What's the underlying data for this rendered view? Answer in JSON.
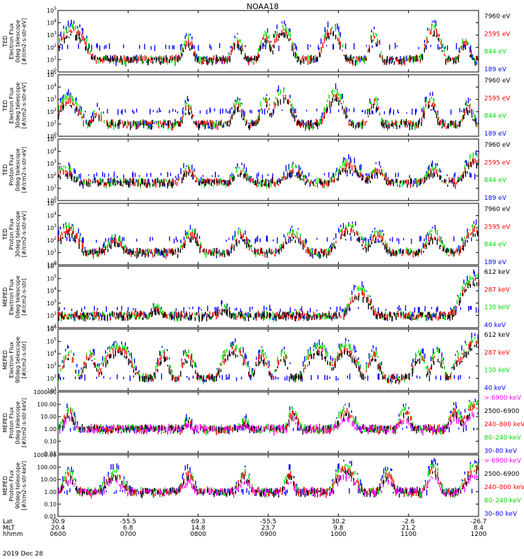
{
  "title": "NOAA18",
  "date_label": "2019 Dec 28",
  "x_axis": {
    "row_labels": [
      "Lat",
      "MLT",
      "hhmm"
    ],
    "ticks": [
      {
        "lat": "30.9",
        "mlt": "20.4",
        "hhmm": "0600"
      },
      {
        "lat": "-55.5",
        "mlt": "6.8",
        "hhmm": "0700"
      },
      {
        "lat": "69.3",
        "mlt": "14.8",
        "hhmm": "0800"
      },
      {
        "lat": "-55.5",
        "mlt": "23.7",
        "hhmm": "0900"
      },
      {
        "lat": "30.2",
        "mlt": "9.8",
        "hhmm": "1000"
      },
      {
        "lat": "-2.6",
        "mlt": "21.2",
        "hhmm": "1100"
      },
      {
        "lat": "-26.7",
        "mlt": "8.4",
        "hhmm": "1200"
      }
    ]
  },
  "chart_data": [
    {
      "type": "scatter",
      "ylabel": [
        "TED",
        "Electron Flux",
        "0deg telescope",
        "[#/cm2-s-str-eV]"
      ],
      "yscale": "log",
      "ylim": [
        1,
        100000
      ],
      "ytick_labels": [
        "10^0",
        "10^1",
        "10^2",
        "10^3",
        "10^4",
        "10^5"
      ],
      "legend": [
        {
          "label": "7960 eV",
          "color": "#000000"
        },
        {
          "label": "2595 eV",
          "color": "#ff0000"
        },
        {
          "label": "844 eV",
          "color": "#00dd00"
        },
        {
          "label": "189 eV",
          "color": "#0000ff"
        }
      ],
      "peaks": [
        [
          6.2,
          10000,
          0.12
        ],
        [
          7.85,
          1000,
          0.06
        ],
        [
          8.55,
          1000,
          0.06
        ],
        [
          8.95,
          3000,
          0.05
        ],
        [
          9.2,
          10000,
          0.08
        ],
        [
          9.9,
          10000,
          0.08
        ],
        [
          10.5,
          3000,
          0.05
        ],
        [
          11.35,
          10000,
          0.07
        ],
        [
          11.8,
          1000,
          0.05
        ]
      ],
      "baseline": 10,
      "bg": 100
    },
    {
      "type": "scatter",
      "ylabel": [
        "TED",
        "Electron Flux",
        "30deg telescope",
        "[#/cm2-s-str-eV]"
      ],
      "yscale": "log",
      "ylim": [
        1,
        100000
      ],
      "ytick_labels": [
        "10^0",
        "10^1",
        "10^2",
        "10^3",
        "10^4",
        "10^5"
      ],
      "legend": [
        {
          "label": "7960 eV",
          "color": "#000000"
        },
        {
          "label": "2595 eV",
          "color": "#ff0000"
        },
        {
          "label": "844 eV",
          "color": "#00dd00"
        },
        {
          "label": "189 eV",
          "color": "#0000ff"
        }
      ],
      "peaks": [
        [
          6.15,
          3000,
          0.1
        ],
        [
          6.55,
          300,
          0.05
        ],
        [
          7.85,
          1000,
          0.05
        ],
        [
          8.55,
          1000,
          0.06
        ],
        [
          8.95,
          3000,
          0.05
        ],
        [
          9.2,
          10000,
          0.08
        ],
        [
          9.95,
          10000,
          0.08
        ],
        [
          10.5,
          3000,
          0.05
        ],
        [
          11.3,
          3000,
          0.06
        ],
        [
          11.85,
          1000,
          0.05
        ]
      ],
      "baseline": 10,
      "bg": 100
    },
    {
      "type": "scatter",
      "ylabel": [
        "TED",
        "Proton Flux",
        "0deg telescope",
        "[#/cm2-s-str-eV]"
      ],
      "yscale": "log",
      "ylim": [
        1,
        100000
      ],
      "ytick_labels": [
        "10^0",
        "10^1",
        "10^2",
        "10^3",
        "10^4",
        "10^5"
      ],
      "legend": [
        {
          "label": "7960 eV",
          "color": "#000000"
        },
        {
          "label": "2595 eV",
          "color": "#ff0000"
        },
        {
          "label": "844 eV",
          "color": "#00dd00"
        },
        {
          "label": "189 eV",
          "color": "#0000ff"
        }
      ],
      "peaks": [
        [
          6.1,
          1000,
          0.1
        ],
        [
          7.85,
          1000,
          0.08
        ],
        [
          8.6,
          1000,
          0.08
        ],
        [
          9.35,
          1000,
          0.1
        ],
        [
          10.15,
          3000,
          0.12
        ],
        [
          10.55,
          1000,
          0.08
        ],
        [
          11.35,
          1000,
          0.08
        ],
        [
          11.95,
          10000,
          0.1
        ]
      ],
      "baseline": 30,
      "bg": 100
    },
    {
      "type": "scatter",
      "ylabel": [
        "TED",
        "Proton Flux",
        "30deg telescope",
        "[#/cm2-s-str-eV]"
      ],
      "yscale": "log",
      "ylim": [
        1,
        100000
      ],
      "ytick_labels": [
        "10^0",
        "10^1",
        "10^2",
        "10^3",
        "10^4",
        "10^5"
      ],
      "legend": [
        {
          "label": "7960 eV",
          "color": "#000000"
        },
        {
          "label": "2595 eV",
          "color": "#ff0000"
        },
        {
          "label": "844 eV",
          "color": "#00dd00"
        },
        {
          "label": "189 eV",
          "color": "#0000ff"
        }
      ],
      "peaks": [
        [
          6.15,
          3000,
          0.1
        ],
        [
          6.8,
          300,
          0.1
        ],
        [
          7.9,
          1000,
          0.08
        ],
        [
          8.6,
          1000,
          0.08
        ],
        [
          9.35,
          1000,
          0.1
        ],
        [
          10.15,
          3000,
          0.12
        ],
        [
          10.55,
          1000,
          0.08
        ],
        [
          11.35,
          1000,
          0.08
        ],
        [
          11.95,
          3000,
          0.1
        ]
      ],
      "baseline": 10,
      "bg": 100
    },
    {
      "type": "scatter",
      "ylabel": [
        "MEPED",
        "Electron Flux",
        "0deg telescope",
        "[#/cm2-s-str]"
      ],
      "yscale": "log",
      "ylim": [
        10,
        1000000
      ],
      "ytick_labels": [
        "10^1",
        "10^2",
        "10^3",
        "10^4",
        "10^5",
        "10^6"
      ],
      "legend": [
        {
          "label": "612 keV",
          "color": "#000000"
        },
        {
          "label": "287 keV",
          "color": "#ff0000"
        },
        {
          "label": "130 keV",
          "color": "#00dd00"
        },
        {
          "label": "40 keV",
          "color": "#0000ff"
        }
      ],
      "peaks": [
        [
          7.4,
          1000,
          0.06
        ],
        [
          8.35,
          1000,
          0.07
        ],
        [
          10.3,
          30000,
          0.1
        ],
        [
          11.95,
          300000,
          0.12
        ]
      ],
      "baseline": 100,
      "bg": 300
    },
    {
      "type": "scatter",
      "ylabel": [
        "MEPED",
        "Electron Flux",
        "90deg telescope",
        "[#/cm2-s-str]"
      ],
      "yscale": "log",
      "ylim": [
        10,
        1000000
      ],
      "ytick_labels": [
        "10^1",
        "10^2",
        "10^3",
        "10^4",
        "10^5",
        "10^6"
      ],
      "legend": [
        {
          "label": "612 keV",
          "color": "#000000"
        },
        {
          "label": "287 keV",
          "color": "#ff0000"
        },
        {
          "label": "130 keV",
          "color": "#00dd00"
        },
        {
          "label": "40 keV",
          "color": "#0000ff"
        }
      ],
      "peaks": [
        [
          6.15,
          30000,
          0.06
        ],
        [
          6.45,
          30000,
          0.06
        ],
        [
          6.85,
          100000,
          0.12
        ],
        [
          7.5,
          30000,
          0.06
        ],
        [
          7.85,
          30000,
          0.06
        ],
        [
          8.5,
          100000,
          0.1
        ],
        [
          8.9,
          30000,
          0.06
        ],
        [
          9.2,
          30000,
          0.06
        ],
        [
          9.7,
          100000,
          0.1
        ],
        [
          10.1,
          100000,
          0.1
        ],
        [
          10.5,
          30000,
          0.06
        ],
        [
          11.15,
          30000,
          0.06
        ],
        [
          11.4,
          30000,
          0.06
        ],
        [
          11.7,
          10000,
          0.05
        ],
        [
          11.95,
          300000,
          0.12
        ]
      ],
      "baseline": 100,
      "bg": 100
    },
    {
      "type": "scatter",
      "ylabel": [
        "MEPED",
        "Proton Flux",
        "0deg telescope",
        "[#/cm2-s-str-keV]"
      ],
      "yscale": "log",
      "ylim": [
        0.01,
        1000
      ],
      "ytick_labels": [
        "0.01",
        "0.10",
        "1.00",
        "10.00",
        "100.00",
        "1000.00"
      ],
      "legend": [
        {
          "label": "> 6900 keV",
          "color": "#ff00ff"
        },
        {
          "label": "2500–6900",
          "color": "#000000"
        },
        {
          "label": "240–800 keV",
          "color": "#ff0000"
        },
        {
          "label": "80–240 keV",
          "color": "#00dd00"
        },
        {
          "label": "30–80 keV",
          "color": "#0000ff"
        }
      ],
      "peaks": [
        [
          6.15,
          100,
          0.06
        ],
        [
          7.85,
          10,
          0.05
        ],
        [
          8.65,
          10,
          0.06
        ],
        [
          9.35,
          100,
          0.05
        ],
        [
          10.1,
          100,
          0.08
        ],
        [
          10.95,
          100,
          0.06
        ],
        [
          11.65,
          100,
          0.06
        ],
        [
          11.95,
          300,
          0.1
        ]
      ],
      "baseline": 1,
      "bg": 1
    },
    {
      "type": "scatter",
      "ylabel": [
        "MEPED",
        "Proton Flux",
        "90deg telescope",
        "[#/cm2-s-str-keV]"
      ],
      "yscale": "log",
      "ylim": [
        0.01,
        1000
      ],
      "ytick_labels": [
        "0.01",
        "0.10",
        "1.00",
        "10.00",
        "100.00",
        "1000.00"
      ],
      "legend": [
        {
          "label": "> 6900 keV",
          "color": "#ff00ff"
        },
        {
          "label": "2500–6900",
          "color": "#000000"
        },
        {
          "label": "240–800 keV",
          "color": "#ff0000"
        },
        {
          "label": "80–240 keV",
          "color": "#00dd00"
        },
        {
          "label": "30–80 keV",
          "color": "#0000ff"
        }
      ],
      "peaks": [
        [
          6.15,
          100,
          0.06
        ],
        [
          6.8,
          100,
          0.1
        ],
        [
          7.85,
          100,
          0.06
        ],
        [
          8.65,
          100,
          0.06
        ],
        [
          9.3,
          100,
          0.05
        ],
        [
          10.1,
          300,
          0.1
        ],
        [
          10.7,
          100,
          0.06
        ],
        [
          11.35,
          300,
          0.06
        ],
        [
          11.95,
          300,
          0.1
        ]
      ],
      "baseline": 1,
      "bg": 1
    }
  ]
}
